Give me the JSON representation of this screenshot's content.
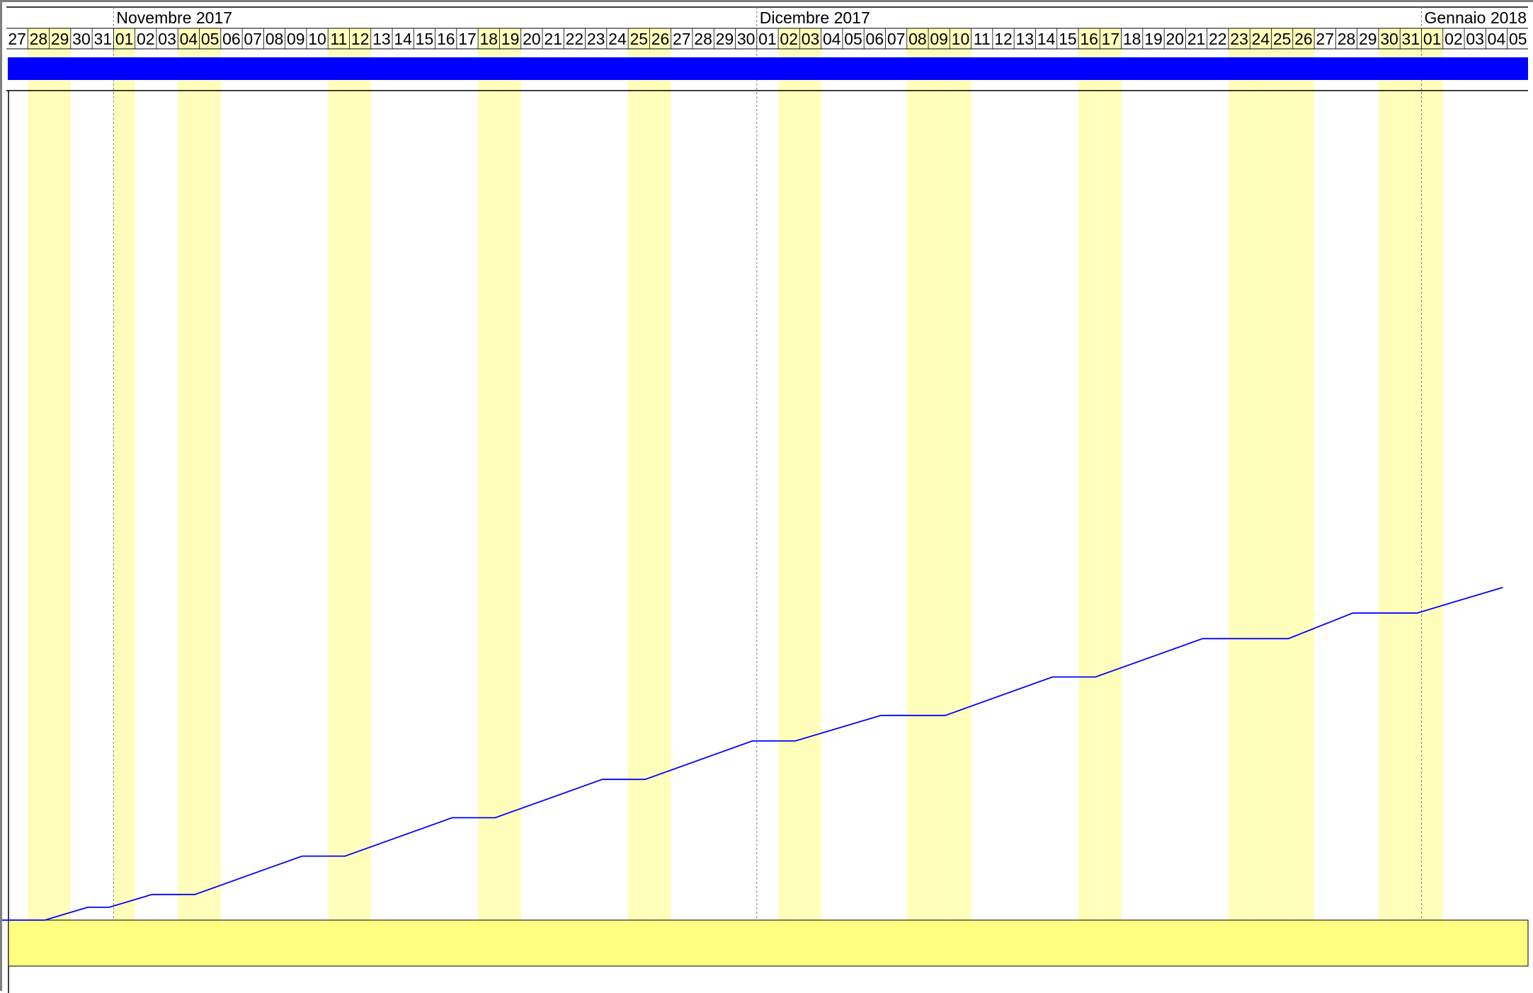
{
  "view": "gantt-timeline",
  "months": [
    {
      "label": "Novembre 2017",
      "start_date": "2017-11-01"
    },
    {
      "label": "Dicembre 2017",
      "start_date": "2017-12-01"
    },
    {
      "label": "Gennaio 2018",
      "start_date": "2018-01-01"
    }
  ],
  "days": [
    "27",
    "28",
    "29",
    "30",
    "31",
    "01",
    "02",
    "03",
    "04",
    "05",
    "06",
    "07",
    "08",
    "09",
    "10",
    "11",
    "12",
    "13",
    "14",
    "15",
    "16",
    "17",
    "18",
    "19",
    "20",
    "21",
    "22",
    "23",
    "24",
    "25",
    "26",
    "27",
    "28",
    "29",
    "30",
    "01",
    "02",
    "03",
    "04",
    "05",
    "06",
    "07",
    "08",
    "09",
    "10",
    "11",
    "12",
    "13",
    "14",
    "15",
    "16",
    "17",
    "18",
    "19",
    "20",
    "21",
    "22",
    "23",
    "24",
    "25",
    "26",
    "27",
    "28",
    "29",
    "30",
    "31",
    "01",
    "02",
    "03",
    "04",
    "05"
  ],
  "first_day": "2017-10-27",
  "last_day": "2018-01-05",
  "non_working_days": [
    "2017-10-28",
    "2017-10-29",
    "2017-11-01",
    "2017-11-04",
    "2017-11-05",
    "2017-11-11",
    "2017-11-12",
    "2017-11-18",
    "2017-11-19",
    "2017-11-25",
    "2017-11-26",
    "2017-12-02",
    "2017-12-03",
    "2017-12-08",
    "2017-12-09",
    "2017-12-10",
    "2017-12-16",
    "2017-12-17",
    "2017-12-23",
    "2017-12-24",
    "2017-12-25",
    "2017-12-26",
    "2017-12-30",
    "2017-12-31",
    "2018-01-01"
  ],
  "colors": {
    "task_bar": "#0000ff",
    "progress_line": "#0000ff",
    "non_working_day": "#ffffbb",
    "bottom_band": "#ffff80",
    "grid": "#000000",
    "month_separator": "#808080"
  },
  "chart_data": {
    "type": "line",
    "series": [
      {
        "x": [
          "2017-10-27",
          "2017-10-29",
          "2017-10-31",
          "2017-11-01",
          "2017-11-03",
          "2017-11-05",
          "2017-11-10",
          "2017-11-12",
          "2017-11-17",
          "2017-11-19",
          "2017-11-24",
          "2017-11-26",
          "2017-12-01",
          "2017-12-03",
          "2017-12-07",
          "2017-12-10",
          "2017-12-15",
          "2017-12-17",
          "2017-12-22",
          "2017-12-26",
          "2017-12-29",
          "2018-01-01",
          "2018-01-05"
        ],
        "y": [
          0,
          0,
          1,
          1,
          2,
          2,
          5,
          5,
          8,
          8,
          11,
          11,
          14,
          14,
          16,
          16,
          19,
          19,
          22,
          22,
          24,
          24,
          26
        ]
      }
    ],
    "ylim": [
      0,
      65
    ],
    "grid": false
  }
}
